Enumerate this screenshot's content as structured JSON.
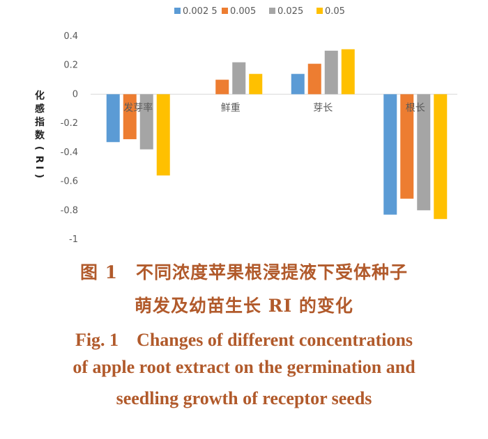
{
  "chart_data": {
    "type": "bar",
    "categories": [
      "发芽率",
      "鲜重",
      "芽长",
      "根长"
    ],
    "series": [
      {
        "name": "0.002 5",
        "color": "#5b9bd5",
        "values": [
          -0.33,
          0,
          0.14,
          -0.83
        ]
      },
      {
        "name": "0.005",
        "color": "#ed7d31",
        "values": [
          -0.31,
          0.1,
          0.21,
          -0.72
        ]
      },
      {
        "name": "0.025",
        "color": "#a5a5a5",
        "values": [
          -0.38,
          0.22,
          0.3,
          -0.8
        ]
      },
      {
        "name": "0.05",
        "color": "#ffc000",
        "values": [
          -0.56,
          0.14,
          0.31,
          -0.86
        ]
      }
    ],
    "ylim": [
      -1,
      0.4
    ],
    "yticks": [
      "0.4",
      "0.2",
      "0",
      "-0.2",
      "-0.4",
      "-0.6",
      "-0.8",
      "-1"
    ],
    "ylabel": "化感指数（RI）",
    "legend_position": "top",
    "grid": false
  },
  "caption": {
    "cn_line1": "图 1　不同浓度苹果根浸提液下受体种子",
    "cn_line2": "萌发及幼苗生长 RI 的变化",
    "en_line1": "Fig. 1　Changes of different concentrations",
    "en_line2": "of apple root extract on the germination and",
    "en_line3": "seedling growth of receptor seeds"
  }
}
